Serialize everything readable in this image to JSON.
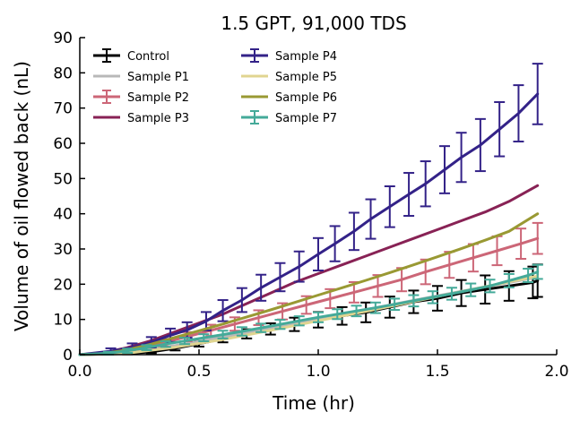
{
  "chart_data": {
    "type": "line",
    "title": "1.5 GPT, 91,000 TDS",
    "xlabel": "Time (hr)",
    "ylabel": "Volume of oil flowed back (nL)",
    "xlim": [
      0,
      2.0
    ],
    "ylim": [
      0,
      90
    ],
    "xticks": [
      0.0,
      0.5,
      1.0,
      1.5,
      2.0
    ],
    "xtick_labels": [
      "0.0",
      "0.5",
      "1.0",
      "1.5",
      "2.0"
    ],
    "yticks": [
      0,
      10,
      20,
      30,
      40,
      50,
      60,
      70,
      80,
      90
    ],
    "ytick_labels": [
      "0",
      "10",
      "20",
      "30",
      "40",
      "50",
      "60",
      "70",
      "80",
      "90"
    ],
    "grid": false,
    "legend_position": "top-left",
    "series": [
      {
        "name": "Control",
        "color": "#000000",
        "error_bars": true,
        "x": [
          0.0,
          0.2,
          0.3,
          0.4,
          0.5,
          0.6,
          0.7,
          0.8,
          0.9,
          1.0,
          1.1,
          1.2,
          1.3,
          1.4,
          1.5,
          1.6,
          1.7,
          1.8,
          1.9,
          1.92
        ],
        "y": [
          0.0,
          0.3,
          0.8,
          1.8,
          3.1,
          4.5,
          5.9,
          7.3,
          8.6,
          9.9,
          11.0,
          12.0,
          13.5,
          15.0,
          16.0,
          17.5,
          18.5,
          19.5,
          20.5,
          21.0
        ],
        "err": [
          0.0,
          0.2,
          0.4,
          0.6,
          0.8,
          1.0,
          1.3,
          1.6,
          1.9,
          2.2,
          2.5,
          2.8,
          3.0,
          3.2,
          3.5,
          3.7,
          4.0,
          4.2,
          4.5,
          4.6
        ]
      },
      {
        "name": "Sample P1",
        "color": "#b8b8b8",
        "error_bars": false,
        "x": [
          0.0,
          0.2,
          0.4,
          0.6,
          0.8,
          1.0,
          1.2,
          1.4,
          1.6,
          1.8,
          1.92
        ],
        "y": [
          0.0,
          0.6,
          2.6,
          5.0,
          7.6,
          10.2,
          12.8,
          15.4,
          18.0,
          20.5,
          22.0
        ]
      },
      {
        "name": "Sample P2",
        "color": "#cc6677",
        "error_bars": true,
        "x": [
          0.0,
          0.15,
          0.25,
          0.35,
          0.45,
          0.55,
          0.65,
          0.75,
          0.85,
          0.95,
          1.05,
          1.15,
          1.25,
          1.35,
          1.45,
          1.55,
          1.65,
          1.75,
          1.85,
          1.92
        ],
        "y": [
          0.0,
          0.6,
          1.8,
          3.4,
          5.1,
          6.9,
          8.7,
          10.5,
          12.3,
          14.1,
          15.9,
          17.7,
          19.5,
          21.3,
          23.5,
          25.5,
          27.5,
          29.5,
          31.5,
          33.0
        ],
        "err": [
          0.0,
          0.4,
          0.7,
          1.0,
          1.3,
          1.6,
          1.9,
          2.1,
          2.3,
          2.5,
          2.7,
          2.9,
          3.1,
          3.3,
          3.5,
          3.7,
          3.9,
          4.1,
          4.3,
          4.4
        ]
      },
      {
        "name": "Sample P3",
        "color": "#882255",
        "error_bars": false,
        "x": [
          0.0,
          0.1,
          0.2,
          0.3,
          0.4,
          0.5,
          0.6,
          0.7,
          0.8,
          0.9,
          1.0,
          1.1,
          1.2,
          1.3,
          1.4,
          1.5,
          1.6,
          1.7,
          1.8,
          1.92
        ],
        "y": [
          0.0,
          0.5,
          2.0,
          4.0,
          6.5,
          9.0,
          11.5,
          14.5,
          17.5,
          20.5,
          23.0,
          25.5,
          28.0,
          30.5,
          33.0,
          35.5,
          38.0,
          40.5,
          43.5,
          48.0
        ]
      },
      {
        "name": "Sample P4",
        "color": "#332288",
        "error_bars": true,
        "x": [
          0.0,
          0.13,
          0.22,
          0.3,
          0.38,
          0.45,
          0.53,
          0.6,
          0.68,
          0.76,
          0.84,
          0.92,
          1.0,
          1.07,
          1.15,
          1.22,
          1.3,
          1.38,
          1.45,
          1.53,
          1.6,
          1.68,
          1.76,
          1.84,
          1.92
        ],
        "y": [
          0.0,
          1.0,
          2.0,
          3.5,
          5.5,
          7.0,
          9.5,
          12.5,
          15.5,
          19.0,
          22.0,
          25.0,
          28.5,
          31.5,
          35.0,
          38.5,
          42.0,
          45.5,
          48.5,
          52.5,
          56.0,
          59.5,
          64.0,
          68.5,
          74.0
        ],
        "err": [
          0.0,
          0.8,
          1.2,
          1.5,
          1.9,
          2.2,
          2.6,
          3.0,
          3.4,
          3.7,
          4.0,
          4.3,
          4.6,
          5.0,
          5.3,
          5.6,
          5.8,
          6.1,
          6.4,
          6.7,
          7.0,
          7.4,
          7.7,
          8.0,
          8.6
        ]
      },
      {
        "name": "Sample P5",
        "color": "#e0d590",
        "error_bars": false,
        "x": [
          0.0,
          0.2,
          0.4,
          0.6,
          0.8,
          1.0,
          1.2,
          1.4,
          1.6,
          1.8,
          1.92
        ],
        "y": [
          0.0,
          0.4,
          2.1,
          4.3,
          6.9,
          9.6,
          12.3,
          15.1,
          17.9,
          20.7,
          22.3
        ]
      },
      {
        "name": "Sample P6",
        "color": "#999933",
        "error_bars": false,
        "x": [
          0.0,
          0.1,
          0.2,
          0.3,
          0.4,
          0.5,
          0.6,
          0.7,
          0.8,
          0.9,
          1.0,
          1.1,
          1.2,
          1.3,
          1.4,
          1.5,
          1.6,
          1.7,
          1.8,
          1.92
        ],
        "y": [
          0.0,
          0.3,
          1.4,
          3.0,
          4.9,
          6.8,
          8.7,
          10.7,
          12.7,
          14.8,
          16.9,
          19.0,
          21.1,
          23.3,
          25.5,
          27.8,
          30.1,
          32.5,
          35.0,
          40.0
        ]
      },
      {
        "name": "Sample P7",
        "color": "#44aa99",
        "error_bars": true,
        "x": [
          0.0,
          0.12,
          0.2,
          0.28,
          0.36,
          0.44,
          0.52,
          0.6,
          0.68,
          0.76,
          0.84,
          0.92,
          1.0,
          1.08,
          1.16,
          1.24,
          1.32,
          1.4,
          1.48,
          1.56,
          1.64,
          1.72,
          1.8,
          1.88,
          1.92
        ],
        "y": [
          0.0,
          0.4,
          1.1,
          2.0,
          3.0,
          3.9,
          4.8,
          5.7,
          6.6,
          7.6,
          8.6,
          9.6,
          10.6,
          11.5,
          12.4,
          13.3,
          14.3,
          15.3,
          16.3,
          17.3,
          18.4,
          19.5,
          21.0,
          22.5,
          23.5
        ],
        "err": [
          0.0,
          0.4,
          0.6,
          0.7,
          0.8,
          0.9,
          1.0,
          1.1,
          1.2,
          1.2,
          1.3,
          1.3,
          1.4,
          1.4,
          1.5,
          1.5,
          1.6,
          1.6,
          1.7,
          1.7,
          1.8,
          1.8,
          1.9,
          1.9,
          2.0
        ]
      }
    ]
  }
}
